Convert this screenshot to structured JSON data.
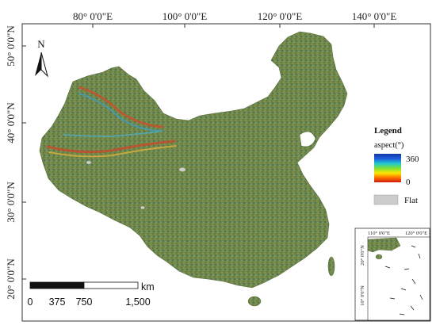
{
  "map": {
    "lon_ticks": [
      "80° 0'0\"E",
      "100° 0'0\"E",
      "120° 0'0\"E",
      "140° 0'0\"E"
    ],
    "lat_ticks": [
      "50° 0'0\"N",
      "40° 0'0\"N",
      "30° 0'0\"N",
      "20° 0'0\"N"
    ],
    "north_label": "N",
    "fill_color": "#6f8a4a",
    "land_texture_colors": [
      "#5f7d3f",
      "#7a9556",
      "#8a8b4a",
      "#4f6f5c",
      "#b88a3a",
      "#3e8fb6"
    ]
  },
  "legend": {
    "title": "Legend",
    "aspect_label": "aspect(°)",
    "max_label": "360",
    "min_label": "0",
    "flat_label": "Flat",
    "flat_color": "#cccccc",
    "gradient_colors": [
      "#cc1a10",
      "#ff6a00",
      "#ffe600",
      "#79e03a",
      "#20c8d0",
      "#1f5bdc",
      "#1437a8"
    ]
  },
  "scalebar": {
    "unit": "km",
    "labels": [
      "0",
      "375",
      "750",
      "1,500"
    ]
  },
  "inset": {
    "lon_ticks": [
      "110° 0'0\"E",
      "120° 0'0\"E"
    ],
    "lat_ticks": [
      "20° 0'0\"N",
      "10° 0'0\"N"
    ]
  }
}
